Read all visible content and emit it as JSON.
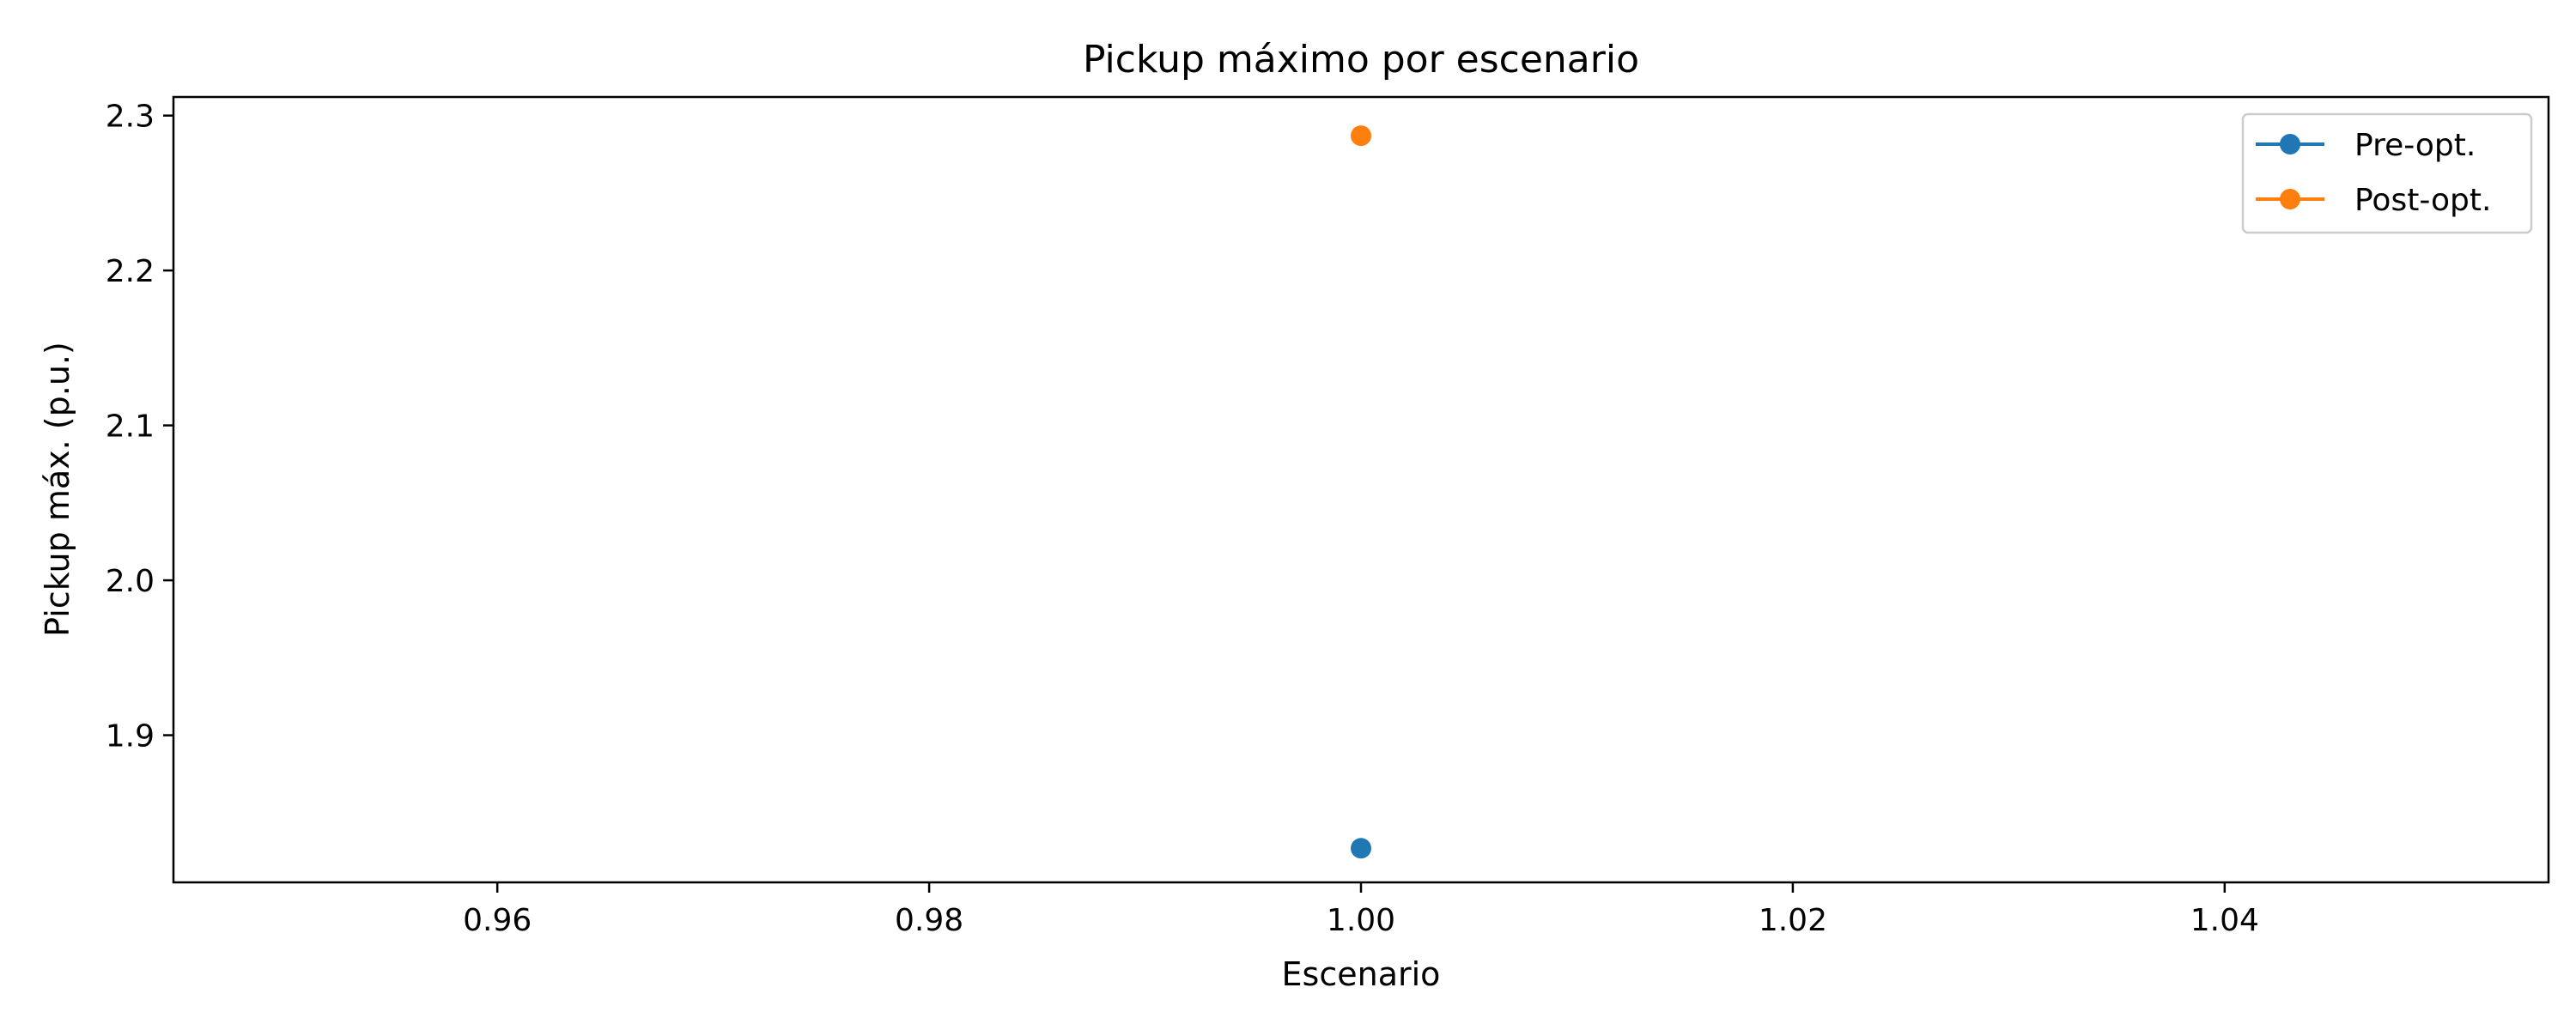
{
  "chart_data": {
    "type": "line",
    "title": "Pickup máximo por escenario",
    "xlabel": "Escenario",
    "ylabel": "Pickup máx. (p.u.)",
    "xlim": [
      0.945,
      1.055
    ],
    "ylim": [
      1.805,
      2.312
    ],
    "xticks": [
      0.96,
      0.98,
      1.0,
      1.02,
      1.04
    ],
    "xtick_labels": [
      "0.96",
      "0.98",
      "1.00",
      "1.02",
      "1.04"
    ],
    "yticks": [
      1.9,
      2.0,
      2.1,
      2.2,
      2.3
    ],
    "ytick_labels": [
      "1.9",
      "2.0",
      "2.1",
      "2.2",
      "2.3"
    ],
    "grid": false,
    "legend_position": "top-right",
    "series": [
      {
        "name": "Pre-opt.",
        "color": "#1f77b4",
        "marker": "circle",
        "x": [
          1.0
        ],
        "y": [
          1.827
        ]
      },
      {
        "name": "Post-opt.",
        "color": "#ff7f0e",
        "marker": "circle",
        "x": [
          1.0
        ],
        "y": [
          2.287
        ]
      }
    ]
  }
}
